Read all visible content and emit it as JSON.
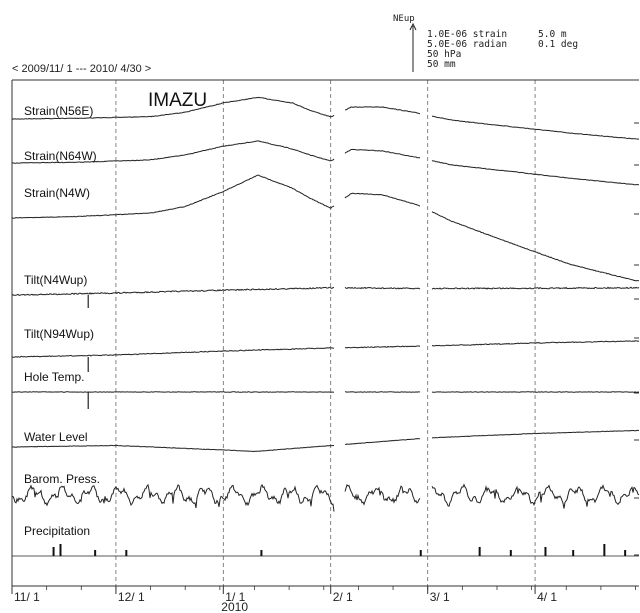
{
  "chart_data": {
    "type": "line",
    "station": "IMAZU",
    "period_label": "< 2009/11/ 1 --- 2010/ 4/30 >",
    "x_range": [
      "2009-11-01",
      "2010-04-30"
    ],
    "x_ticks": [
      {
        "date": "2009-11-01",
        "label": "11/ 1"
      },
      {
        "date": "2009-12-01",
        "label": "12/ 1"
      },
      {
        "date": "2010-01-01",
        "label": "1/ 1"
      },
      {
        "date": "2010-02-01",
        "label": "2/ 1"
      },
      {
        "date": "2010-03-01",
        "label": "3/ 1"
      },
      {
        "date": "2010-04-01",
        "label": "4/ 1"
      }
    ],
    "year_label": "2010",
    "scale": {
      "direction_label": "NEup",
      "rows": [
        {
          "left": "1.0E-06  strain",
          "right": "5.0 m"
        },
        {
          "left": "5.0E-06  radian",
          "right": "0.1 deg"
        },
        {
          "left": "50  hPa",
          "right": ""
        },
        {
          "left": "50  mm",
          "right": ""
        }
      ]
    },
    "grid": "dashed vertical lines at month boundaries",
    "series": [
      {
        "name": "Strain(N56E)",
        "x": [
          "2009-11-01",
          "2009-11-21",
          "2009-12-11",
          "2009-12-21",
          "2010-01-01",
          "2010-01-11",
          "2010-01-21",
          "2010-01-26",
          "2010-02-01",
          "2010-02-07",
          "2010-02-16",
          "2010-02-26",
          "2010-03-08",
          "2010-03-26",
          "2010-04-11",
          "2010-04-30"
        ],
        "y": [
          0.0,
          0.02,
          0.06,
          0.17,
          0.4,
          0.54,
          0.4,
          0.22,
          0.05,
          0.3,
          0.3,
          0.15,
          -0.03,
          -0.2,
          -0.35,
          -0.5
        ]
      },
      {
        "name": "Strain(N64W)",
        "x": [
          "2009-11-01",
          "2009-11-21",
          "2009-12-11",
          "2009-12-21",
          "2010-01-01",
          "2010-01-11",
          "2010-01-21",
          "2010-01-26",
          "2010-02-01",
          "2010-02-07",
          "2010-02-16",
          "2010-02-26",
          "2010-03-08",
          "2010-03-26",
          "2010-04-11",
          "2010-04-30"
        ],
        "y": [
          0.0,
          0.02,
          0.08,
          0.2,
          0.42,
          0.55,
          0.35,
          0.2,
          0.05,
          0.34,
          0.3,
          0.14,
          -0.05,
          -0.22,
          -0.38,
          -0.54
        ]
      },
      {
        "name": "Strain(N4W)",
        "x": [
          "2009-11-01",
          "2009-11-21",
          "2009-12-11",
          "2009-12-21",
          "2010-01-01",
          "2010-01-11",
          "2010-01-21",
          "2010-01-26",
          "2010-02-01",
          "2010-02-07",
          "2010-02-16",
          "2010-02-26",
          "2010-03-08",
          "2010-03-26",
          "2010-04-11",
          "2010-04-30"
        ],
        "y": [
          0.0,
          0.05,
          0.15,
          0.35,
          0.8,
          1.3,
          0.9,
          0.6,
          0.3,
          0.75,
          0.7,
          0.4,
          -0.1,
          -0.8,
          -1.4,
          -1.9
        ]
      },
      {
        "name": "Tilt(N4Wup)",
        "x": [
          "2009-11-01",
          "2009-12-01",
          "2010-01-01",
          "2010-02-01",
          "2010-03-01",
          "2010-04-01",
          "2010-04-30"
        ],
        "y": [
          0.0,
          0.05,
          0.12,
          0.18,
          0.16,
          0.17,
          0.18
        ]
      },
      {
        "name": "Tilt(N94Wup)",
        "x": [
          "2009-11-01",
          "2009-12-01",
          "2010-01-01",
          "2010-02-01",
          "2010-03-01",
          "2010-04-01",
          "2010-04-30"
        ],
        "y": [
          0.0,
          0.1,
          0.3,
          0.45,
          0.55,
          0.7,
          0.8
        ]
      },
      {
        "name": "Hole Temp.",
        "x": [
          "2009-11-01",
          "2010-04-30"
        ],
        "y": [
          0.0,
          0.0
        ]
      },
      {
        "name": "Water Level",
        "x": [
          "2009-11-01",
          "2009-12-01",
          "2010-01-01",
          "2010-01-10",
          "2010-02-01",
          "2010-03-01",
          "2010-04-01",
          "2010-04-30"
        ],
        "y": [
          0.0,
          0.05,
          -0.1,
          -0.15,
          0.05,
          0.3,
          0.45,
          0.55
        ]
      },
      {
        "name": "Barom. Press.",
        "x": [
          "2009-11-01",
          "2010-04-30"
        ],
        "y": [
          0.0,
          0.0
        ],
        "note": "high-frequency oscillating trace"
      },
      {
        "name": "Precipitation",
        "type": "bar",
        "x": [
          "2009-11-13",
          "2009-11-15",
          "2009-11-25",
          "2009-12-04",
          "2010-01-12",
          "2010-02-27",
          "2010-03-16",
          "2010-03-25",
          "2010-04-04",
          "2010-04-12",
          "2010-04-21",
          "2010-04-27"
        ],
        "values": [
          3,
          4,
          2,
          2,
          2,
          2,
          3,
          2,
          3,
          2,
          4,
          2
        ]
      }
    ]
  }
}
